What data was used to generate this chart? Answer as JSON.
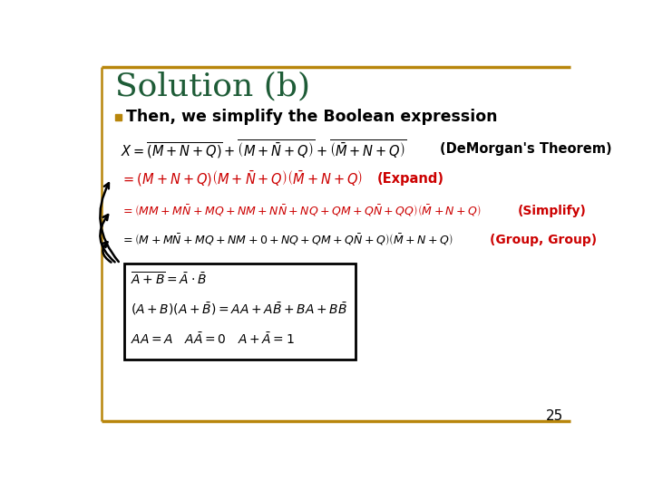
{
  "title": "Solution (b)",
  "title_color": "#1E5C37",
  "background_color": "#FFFFFF",
  "border_color": "#B8860B",
  "bullet_color": "#B8860B",
  "bullet_text": "Then, we simplify the Boolean expression",
  "bullet_text_color": "#000000",
  "demorgan_label": "(DeMorgan's Theorem)",
  "demorgan_label_color": "#000000",
  "expand_label": "(Expand)",
  "expand_label_color": "#CC0000",
  "simplify_label": "(Simplify)",
  "simplify_label_color": "#CC0000",
  "group_label": "(Group, Group)",
  "group_label_color": "#CC0000",
  "page_number": "25",
  "line1_formula": "$X = \\overline{\\left(M+N+Q\\right)}+\\overline{\\left(M+\\bar{N}+Q\\right)}+\\overline{\\left(\\bar{M}+N+Q\\right)}$",
  "line2_formula": "$=(M+N+Q)\\left(M+\\bar{N}+Q\\right)\\left(\\bar{M}+N+Q\\right)$",
  "line3_formula": "$=\\left(MM+M\\bar{N}+MQ+NM+N\\bar{N}+NQ+QM+Q\\bar{N}+QQ\\right)\\left(\\bar{M}+N+Q\\right)$",
  "line4_formula": "$=\\left(M+M\\bar{N}+MQ+NM+0+NQ+QM+Q\\bar{N}+Q\\right)\\left(\\bar{M}+N+Q\\right)$",
  "line2_color": "#CC0000",
  "line3_color": "#CC0000",
  "line4_color": "#000000",
  "box_line1": "$\\overline{A+B}=\\bar{A}\\cdot\\bar{B}$",
  "box_line2": "$\\left(A+B\\right)\\left(A+\\bar{B}\\right)=AA+A\\bar{B}+BA+B\\bar{B}$",
  "box_line3": "$AA=A\\quad A\\bar{A}=0\\quad A+\\bar{A}=1$"
}
